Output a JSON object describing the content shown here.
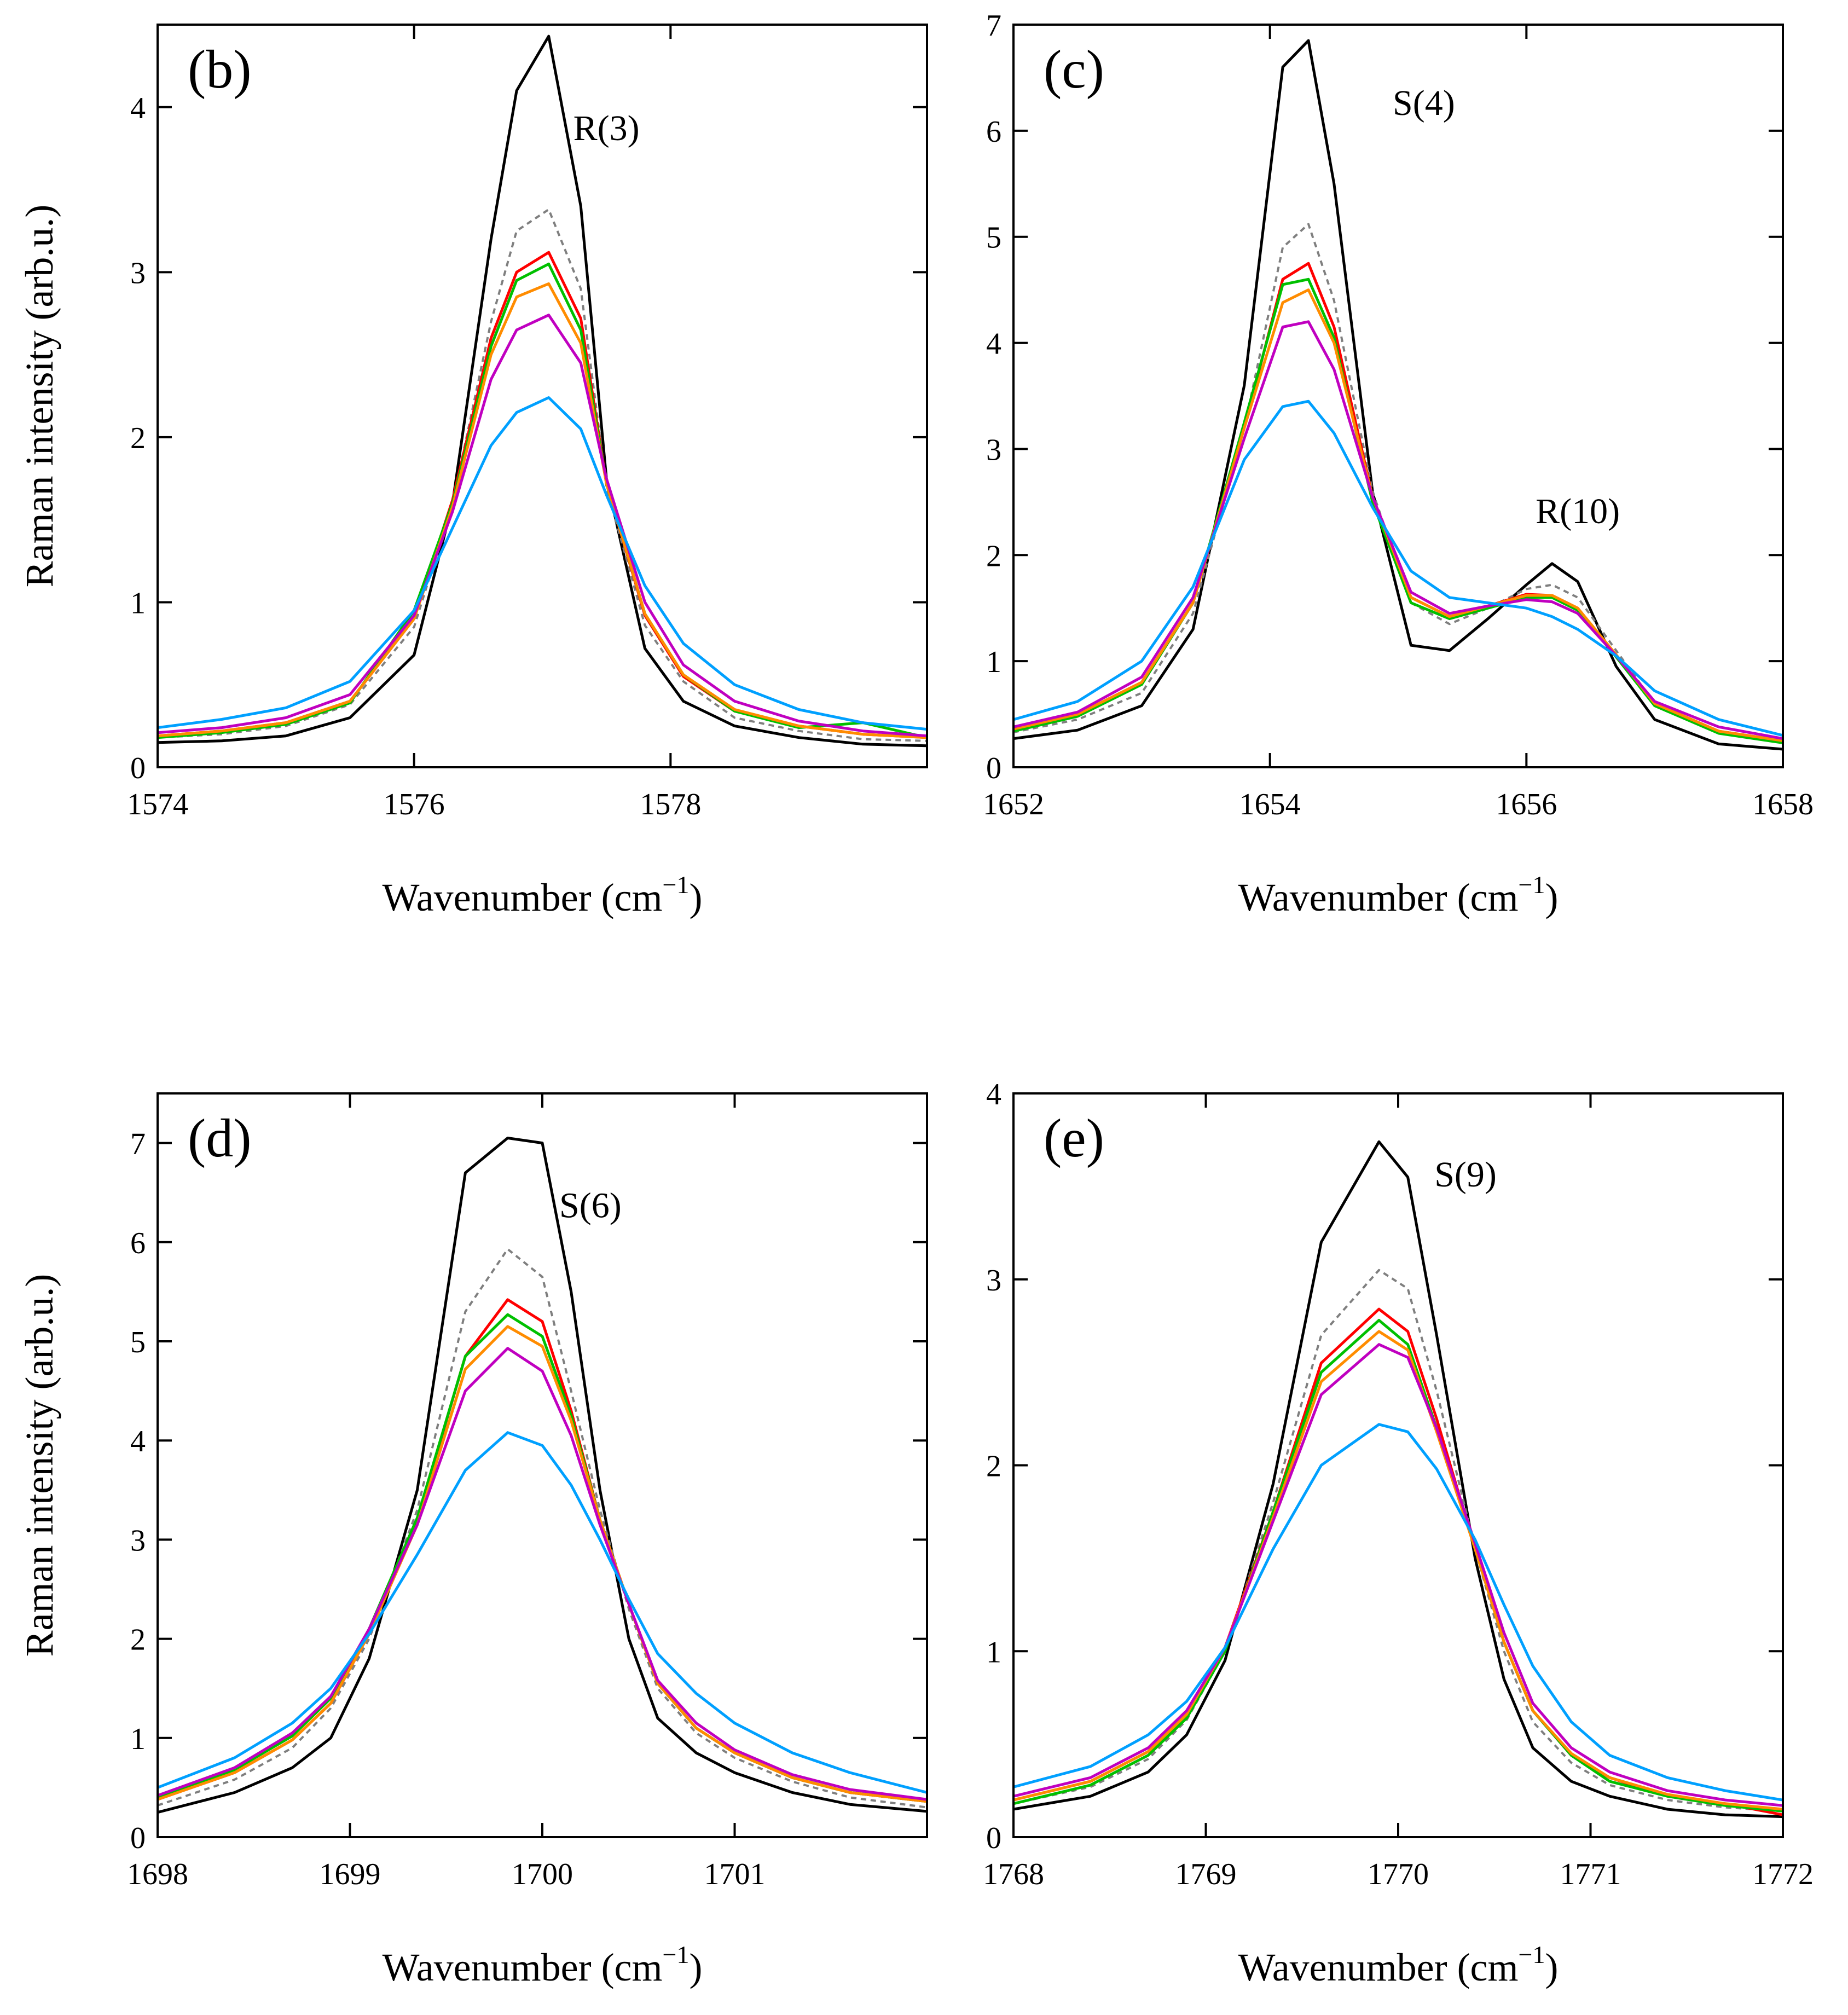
{
  "chart_data": [
    {
      "type": "line",
      "panel_label": "(b)",
      "annotations": [
        {
          "text": "R(3)",
          "x": 1577.5,
          "y": 3.8
        }
      ],
      "xlabel": "Wavenumber (cm",
      "xlabel_sup": "−1",
      "xlabel_close": ")",
      "ylabel": "Raman intensity (arb.u.)",
      "xlim": [
        1574,
        1580
      ],
      "ylim": [
        0,
        4.5
      ],
      "xticks": [
        1574,
        1576,
        1578
      ],
      "yticks": [
        0,
        1,
        2,
        3,
        4
      ],
      "x": [
        1574.0,
        1574.5,
        1575.0,
        1575.5,
        1576.0,
        1576.3,
        1576.6,
        1576.8,
        1577.05,
        1577.3,
        1577.5,
        1577.8,
        1578.1,
        1578.5,
        1579.0,
        1579.5,
        1580.0
      ],
      "series": [
        {
          "name": "black",
          "color": "#000000",
          "dash": false,
          "values": [
            0.15,
            0.16,
            0.19,
            0.3,
            0.68,
            1.6,
            3.2,
            4.1,
            4.43,
            3.4,
            1.75,
            0.72,
            0.4,
            0.25,
            0.18,
            0.14,
            0.13
          ]
        },
        {
          "name": "gray dashed",
          "color": "#7f7f7f",
          "dash": true,
          "values": [
            0.18,
            0.2,
            0.25,
            0.38,
            0.85,
            1.6,
            2.7,
            3.25,
            3.38,
            2.9,
            1.7,
            0.86,
            0.52,
            0.3,
            0.22,
            0.17,
            0.16
          ]
        },
        {
          "name": "red",
          "color": "#ff0000",
          "dash": false,
          "values": [
            0.19,
            0.22,
            0.27,
            0.4,
            0.9,
            1.62,
            2.6,
            3.0,
            3.12,
            2.72,
            1.72,
            0.92,
            0.55,
            0.34,
            0.25,
            0.2,
            0.18
          ]
        },
        {
          "name": "green",
          "color": "#00c000",
          "dash": false,
          "values": [
            0.18,
            0.21,
            0.26,
            0.39,
            0.95,
            1.6,
            2.55,
            2.95,
            3.05,
            2.65,
            1.72,
            0.93,
            0.56,
            0.34,
            0.24,
            0.27,
            0.18
          ]
        },
        {
          "name": "orange",
          "color": "#ff8c00",
          "dash": false,
          "values": [
            0.19,
            0.22,
            0.27,
            0.4,
            0.9,
            1.58,
            2.5,
            2.85,
            2.93,
            2.57,
            1.72,
            0.93,
            0.56,
            0.35,
            0.25,
            0.2,
            0.18
          ]
        },
        {
          "name": "magenta",
          "color": "#c000c0",
          "dash": false,
          "values": [
            0.21,
            0.24,
            0.3,
            0.44,
            0.92,
            1.55,
            2.35,
            2.65,
            2.74,
            2.45,
            1.75,
            1.0,
            0.62,
            0.4,
            0.28,
            0.22,
            0.19
          ]
        },
        {
          "name": "blue",
          "color": "#00a0ff",
          "dash": false,
          "values": [
            0.24,
            0.29,
            0.36,
            0.52,
            0.95,
            1.45,
            1.95,
            2.15,
            2.24,
            2.05,
            1.65,
            1.1,
            0.75,
            0.5,
            0.35,
            0.27,
            0.23
          ]
        }
      ]
    },
    {
      "type": "line",
      "panel_label": "(c)",
      "annotations": [
        {
          "text": "S(4)",
          "x": 1655.2,
          "y": 6.15
        },
        {
          "text": "R(10)",
          "x": 1656.4,
          "y": 2.3
        }
      ],
      "xlabel": "Wavenumber (cm",
      "xlabel_sup": "−1",
      "xlabel_close": ")",
      "ylabel": "",
      "xlim": [
        1652,
        1658
      ],
      "ylim": [
        0,
        7
      ],
      "xticks": [
        1652,
        1654,
        1656,
        1658
      ],
      "yticks": [
        0,
        1,
        2,
        3,
        4,
        5,
        6,
        7
      ],
      "x": [
        1652.0,
        1652.5,
        1653.0,
        1653.4,
        1653.8,
        1654.1,
        1654.3,
        1654.5,
        1654.8,
        1655.1,
        1655.4,
        1655.7,
        1656.0,
        1656.2,
        1656.4,
        1656.7,
        1657.0,
        1657.5,
        1658.0
      ],
      "series": [
        {
          "name": "black",
          "color": "#000000",
          "dash": false,
          "values": [
            0.27,
            0.35,
            0.58,
            1.3,
            3.6,
            6.6,
            6.85,
            5.5,
            2.6,
            1.15,
            1.1,
            1.4,
            1.72,
            1.92,
            1.75,
            0.95,
            0.45,
            0.22,
            0.17
          ]
        },
        {
          "name": "gray dashed",
          "color": "#7f7f7f",
          "dash": true,
          "values": [
            0.33,
            0.45,
            0.7,
            1.45,
            3.2,
            4.9,
            5.12,
            4.4,
            2.6,
            1.55,
            1.35,
            1.5,
            1.68,
            1.72,
            1.6,
            1.1,
            0.6,
            0.32,
            0.24
          ]
        },
        {
          "name": "red",
          "color": "#ff0000",
          "dash": false,
          "values": [
            0.36,
            0.5,
            0.8,
            1.55,
            3.2,
            4.6,
            4.75,
            4.15,
            2.55,
            1.6,
            1.42,
            1.52,
            1.63,
            1.62,
            1.5,
            1.05,
            0.6,
            0.34,
            0.25
          ]
        },
        {
          "name": "green",
          "color": "#00c000",
          "dash": false,
          "values": [
            0.34,
            0.48,
            0.78,
            1.55,
            3.25,
            4.55,
            4.6,
            4.05,
            2.5,
            1.55,
            1.4,
            1.5,
            1.6,
            1.6,
            1.48,
            1.04,
            0.58,
            0.32,
            0.23
          ]
        },
        {
          "name": "orange",
          "color": "#ff8c00",
          "dash": false,
          "values": [
            0.36,
            0.5,
            0.8,
            1.55,
            3.2,
            4.38,
            4.5,
            4.0,
            2.55,
            1.6,
            1.42,
            1.52,
            1.62,
            1.62,
            1.5,
            1.06,
            0.6,
            0.34,
            0.25
          ]
        },
        {
          "name": "magenta",
          "color": "#c000c0",
          "dash": false,
          "values": [
            0.38,
            0.52,
            0.85,
            1.6,
            3.1,
            4.15,
            4.2,
            3.75,
            2.55,
            1.65,
            1.45,
            1.52,
            1.58,
            1.56,
            1.45,
            1.05,
            0.62,
            0.38,
            0.27
          ]
        },
        {
          "name": "blue",
          "color": "#00a0ff",
          "dash": false,
          "values": [
            0.45,
            0.62,
            1.0,
            1.7,
            2.9,
            3.4,
            3.45,
            3.15,
            2.45,
            1.85,
            1.6,
            1.55,
            1.5,
            1.42,
            1.3,
            1.05,
            0.72,
            0.45,
            0.3
          ]
        }
      ]
    },
    {
      "type": "line",
      "panel_label": "(d)",
      "annotations": [
        {
          "text": "S(6)",
          "x": 1700.25,
          "y": 6.25
        }
      ],
      "xlabel": "Wavenumber (cm",
      "xlabel_sup": "−1",
      "xlabel_close": ")",
      "ylabel": "Raman intensity (arb.u.)",
      "xlim": [
        1698,
        1702
      ],
      "ylim": [
        0,
        7.5
      ],
      "xticks": [
        1698,
        1699,
        1700,
        1701
      ],
      "yticks": [
        0,
        1,
        2,
        3,
        4,
        5,
        6,
        7
      ],
      "x": [
        1698.0,
        1698.4,
        1698.7,
        1698.9,
        1699.1,
        1699.35,
        1699.6,
        1699.82,
        1700.0,
        1700.15,
        1700.3,
        1700.45,
        1700.6,
        1700.8,
        1701.0,
        1701.3,
        1701.6,
        1702.0
      ],
      "series": [
        {
          "name": "black",
          "color": "#000000",
          "dash": false,
          "values": [
            0.25,
            0.45,
            0.7,
            1.0,
            1.8,
            3.5,
            6.7,
            7.05,
            7.0,
            5.5,
            3.5,
            2.0,
            1.2,
            0.85,
            0.65,
            0.45,
            0.33,
            0.26
          ]
        },
        {
          "name": "gray dashed",
          "color": "#7f7f7f",
          "dash": true,
          "values": [
            0.32,
            0.58,
            0.9,
            1.3,
            2.0,
            3.3,
            5.3,
            5.93,
            5.65,
            4.5,
            3.3,
            2.3,
            1.5,
            1.05,
            0.8,
            0.56,
            0.4,
            0.3
          ]
        },
        {
          "name": "red",
          "color": "#ff0000",
          "dash": false,
          "values": [
            0.38,
            0.65,
            0.98,
            1.35,
            2.05,
            3.2,
            4.85,
            5.42,
            5.2,
            4.3,
            3.2,
            2.35,
            1.55,
            1.1,
            0.85,
            0.6,
            0.45,
            0.36
          ]
        },
        {
          "name": "green",
          "color": "#00c000",
          "dash": false,
          "values": [
            0.4,
            0.68,
            1.02,
            1.4,
            2.1,
            3.22,
            4.85,
            5.27,
            5.05,
            4.25,
            3.2,
            2.35,
            1.55,
            1.1,
            0.85,
            0.6,
            0.45,
            0.36
          ]
        },
        {
          "name": "orange",
          "color": "#ff8c00",
          "dash": false,
          "values": [
            0.38,
            0.65,
            0.98,
            1.35,
            2.05,
            3.15,
            4.72,
            5.15,
            4.95,
            4.2,
            3.2,
            2.35,
            1.55,
            1.1,
            0.85,
            0.6,
            0.45,
            0.36
          ]
        },
        {
          "name": "magenta",
          "color": "#c000c0",
          "dash": false,
          "values": [
            0.42,
            0.7,
            1.05,
            1.42,
            2.1,
            3.15,
            4.5,
            4.93,
            4.7,
            4.05,
            3.15,
            2.35,
            1.58,
            1.15,
            0.88,
            0.63,
            0.48,
            0.38
          ]
        },
        {
          "name": "blue",
          "color": "#00a0ff",
          "dash": false,
          "values": [
            0.5,
            0.8,
            1.15,
            1.5,
            2.05,
            2.85,
            3.7,
            4.08,
            3.95,
            3.55,
            3.0,
            2.4,
            1.85,
            1.45,
            1.15,
            0.85,
            0.65,
            0.45
          ]
        }
      ]
    },
    {
      "type": "line",
      "panel_label": "(e)",
      "annotations": [
        {
          "text": "S(9)",
          "x": 1770.35,
          "y": 3.5
        }
      ],
      "xlabel": "Wavenumber (cm",
      "xlabel_sup": "−1",
      "xlabel_close": ")",
      "ylabel": "",
      "xlim": [
        1768,
        1772
      ],
      "ylim": [
        0,
        4
      ],
      "xticks": [
        1768,
        1769,
        1770,
        1771,
        1772
      ],
      "yticks": [
        0,
        1,
        2,
        3,
        4
      ],
      "x": [
        1768.0,
        1768.4,
        1768.7,
        1768.9,
        1769.1,
        1769.35,
        1769.6,
        1769.9,
        1770.05,
        1770.2,
        1770.4,
        1770.55,
        1770.7,
        1770.9,
        1771.1,
        1771.4,
        1771.7,
        1772.0
      ],
      "series": [
        {
          "name": "black",
          "color": "#000000",
          "dash": false,
          "values": [
            0.15,
            0.22,
            0.35,
            0.55,
            0.95,
            1.9,
            3.2,
            3.74,
            3.55,
            2.7,
            1.5,
            0.85,
            0.48,
            0.3,
            0.22,
            0.15,
            0.12,
            0.11
          ]
        },
        {
          "name": "gray dashed",
          "color": "#7f7f7f",
          "dash": true,
          "values": [
            0.18,
            0.27,
            0.42,
            0.63,
            1.0,
            1.8,
            2.7,
            3.05,
            2.95,
            2.4,
            1.55,
            1.0,
            0.62,
            0.4,
            0.28,
            0.2,
            0.16,
            0.14
          ]
        },
        {
          "name": "red",
          "color": "#ff0000",
          "dash": false,
          "values": [
            0.2,
            0.3,
            0.46,
            0.66,
            1.02,
            1.75,
            2.55,
            2.84,
            2.72,
            2.25,
            1.55,
            1.05,
            0.68,
            0.44,
            0.32,
            0.22,
            0.18,
            0.12
          ]
        },
        {
          "name": "green",
          "color": "#00c000",
          "dash": false,
          "values": [
            0.18,
            0.28,
            0.44,
            0.64,
            1.0,
            1.75,
            2.5,
            2.78,
            2.65,
            2.2,
            1.55,
            1.05,
            0.68,
            0.44,
            0.3,
            0.22,
            0.17,
            0.14
          ]
        },
        {
          "name": "orange",
          "color": "#ff8c00",
          "dash": false,
          "values": [
            0.2,
            0.3,
            0.46,
            0.66,
            1.02,
            1.72,
            2.45,
            2.72,
            2.62,
            2.18,
            1.55,
            1.05,
            0.68,
            0.45,
            0.32,
            0.23,
            0.18,
            0.15
          ]
        },
        {
          "name": "magenta",
          "color": "#c000c0",
          "dash": false,
          "values": [
            0.22,
            0.32,
            0.48,
            0.68,
            1.02,
            1.7,
            2.38,
            2.65,
            2.58,
            2.2,
            1.58,
            1.1,
            0.72,
            0.48,
            0.35,
            0.25,
            0.2,
            0.17
          ]
        },
        {
          "name": "blue",
          "color": "#00a0ff",
          "dash": false,
          "values": [
            0.27,
            0.38,
            0.55,
            0.73,
            1.02,
            1.55,
            2.0,
            2.22,
            2.18,
            1.98,
            1.6,
            1.25,
            0.92,
            0.62,
            0.44,
            0.32,
            0.25,
            0.2
          ]
        }
      ]
    }
  ]
}
